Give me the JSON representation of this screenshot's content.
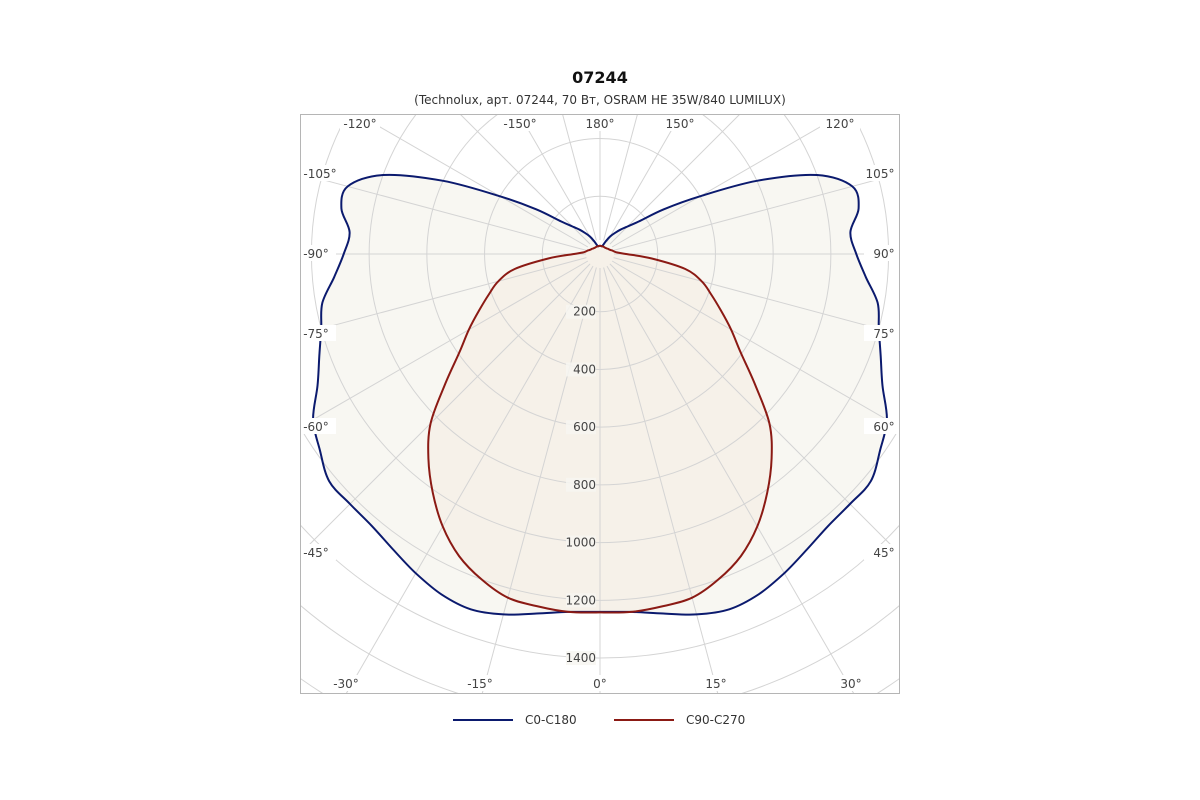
{
  "title": "07244",
  "subtitle": "(Technolux, арт. 07244, 70 Вт, OSRAM HE 35W/840 LUMILUX)",
  "chart_data": {
    "type": "polar",
    "title": "07244",
    "subtitle": "(Technolux, арт. 07244, 70 Вт, OSRAM HE 35W/840 LUMILUX)",
    "radial_ticks": [
      200,
      400,
      600,
      800,
      1000,
      1200,
      1400
    ],
    "radial_max": 1400,
    "angle_labels": [
      {
        "angle": -120,
        "label": "-120°"
      },
      {
        "angle": -150,
        "label": "-150°"
      },
      {
        "angle": 180,
        "label": "180°"
      },
      {
        "angle": 150,
        "label": "150°"
      },
      {
        "angle": 120,
        "label": "120°"
      },
      {
        "angle": -105,
        "label": "-105°"
      },
      {
        "angle": 105,
        "label": "105°"
      },
      {
        "angle": -90,
        "label": "-90°"
      },
      {
        "angle": 90,
        "label": "90°"
      },
      {
        "angle": -75,
        "label": "-75°"
      },
      {
        "angle": 75,
        "label": "75°"
      },
      {
        "angle": -60,
        "label": "-60°"
      },
      {
        "angle": 60,
        "label": "60°"
      },
      {
        "angle": -45,
        "label": "-45°"
      },
      {
        "angle": 45,
        "label": "45°"
      },
      {
        "angle": -30,
        "label": "-30°"
      },
      {
        "angle": -15,
        "label": "-15°"
      },
      {
        "angle": 0,
        "label": "0°"
      },
      {
        "angle": 15,
        "label": "15°"
      },
      {
        "angle": 30,
        "label": "30°"
      }
    ],
    "grid": true,
    "legend_position": "bottom",
    "series": [
      {
        "name": "C0-C180",
        "color": "#0b1a6e",
        "fill": "#f7f6f1",
        "angles": [
          0,
          5,
          10,
          15,
          20,
          25,
          30,
          35,
          40,
          45,
          50,
          55,
          60,
          65,
          70,
          75,
          80,
          85,
          90,
          95,
          100,
          105,
          110,
          115,
          120,
          125,
          130,
          135,
          140,
          145,
          150,
          155,
          160,
          165,
          170,
          175,
          180
        ],
        "values": [
          1240,
          1245,
          1265,
          1293,
          1310,
          1301,
          1277,
          1250,
          1230,
          1225,
          1225,
          1185,
          1148,
          1080,
          1035,
          1000,
          977,
          925,
          888,
          871,
          910,
          905,
          800,
          600,
          400,
          270,
          175,
          135,
          110,
          88,
          70,
          50,
          35,
          28,
          28,
          28,
          28
        ]
      },
      {
        "name": "C90-C270",
        "color": "#8b1a14",
        "fill": "#f5f0e8",
        "angles": [
          0,
          5,
          10,
          15,
          20,
          25,
          30,
          35,
          40,
          45,
          50,
          55,
          60,
          65,
          70,
          75,
          80,
          85,
          90,
          95,
          100,
          105,
          110,
          115,
          120,
          125,
          130,
          135,
          140,
          145,
          150,
          155,
          160,
          165,
          170,
          175,
          180
        ],
        "values": [
          1242,
          1245,
          1240,
          1233,
          1200,
          1155,
          1090,
          1010,
          925,
          830,
          700,
          595,
          525,
          462,
          410,
          365,
          300,
          180,
          90,
          60,
          50,
          45,
          40,
          36,
          34,
          32,
          30,
          29,
          28,
          28,
          28,
          28,
          28,
          28,
          28,
          28,
          28
        ]
      }
    ]
  }
}
